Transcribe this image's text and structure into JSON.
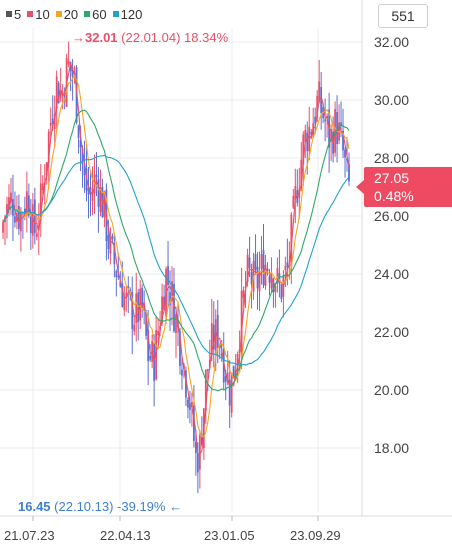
{
  "legend": [
    {
      "label": "5",
      "color": "#555555"
    },
    {
      "label": "10",
      "color": "#e8506a"
    },
    {
      "label": "20",
      "color": "#f5a623"
    },
    {
      "label": "60",
      "color": "#2ea86b"
    },
    {
      "label": "120",
      "color": "#21a3c9"
    }
  ],
  "period_box": "551",
  "max_annotation": {
    "arrow": "→",
    "value": "32.01",
    "detail": "(22.01.04) 18.34%"
  },
  "min_annotation": {
    "value": "16.45",
    "detail": "(22.10.13) -39.19%",
    "arrow": "←"
  },
  "price_tag": {
    "price": "27.05",
    "change": "0.48%"
  },
  "chart_data": {
    "type": "line",
    "y_ticks": [
      "32.00",
      "30.00",
      "28.00",
      "26.00",
      "24.00",
      "22.00",
      "20.00",
      "18.00"
    ],
    "ylim": [
      16.0,
      33.0
    ],
    "x_ticks": [
      "21.07.23",
      "22.04.13",
      "23.01.05",
      "23.09.29"
    ],
    "grid": true,
    "colors": {
      "up": "#e8506a",
      "down": "#5b6fd6",
      "ma5": "#555555",
      "ma10": "#e8506a",
      "ma20": "#f5a623",
      "ma60": "#2ea86b",
      "ma120": "#21a3c9"
    },
    "price_anchors": [
      [
        0,
        25.4
      ],
      [
        6,
        26.2
      ],
      [
        12,
        26.6
      ],
      [
        20,
        26.0
      ],
      [
        28,
        26.8
      ],
      [
        34,
        25.4
      ],
      [
        40,
        26.2
      ],
      [
        48,
        28.6
      ],
      [
        56,
        30.6
      ],
      [
        62,
        30.2
      ],
      [
        68,
        31.2
      ],
      [
        74,
        30.8
      ],
      [
        78,
        29.4
      ],
      [
        84,
        27.2
      ],
      [
        90,
        26.6
      ],
      [
        96,
        27.4
      ],
      [
        104,
        26.2
      ],
      [
        110,
        24.8
      ],
      [
        118,
        24.0
      ],
      [
        126,
        23.0
      ],
      [
        134,
        22.6
      ],
      [
        142,
        22.8
      ],
      [
        148,
        21.2
      ],
      [
        154,
        21.0
      ],
      [
        160,
        22.6
      ],
      [
        166,
        24.0
      ],
      [
        172,
        23.2
      ],
      [
        178,
        22.0
      ],
      [
        184,
        20.8
      ],
      [
        190,
        19.6
      ],
      [
        196,
        17.6
      ],
      [
        200,
        18.0
      ],
      [
        206,
        20.4
      ],
      [
        212,
        21.6
      ],
      [
        218,
        22.0
      ],
      [
        224,
        21.0
      ],
      [
        230,
        20.0
      ],
      [
        236,
        21.2
      ],
      [
        242,
        22.8
      ],
      [
        248,
        24.0
      ],
      [
        256,
        23.6
      ],
      [
        264,
        24.4
      ],
      [
        272,
        24.2
      ],
      [
        280,
        23.4
      ],
      [
        288,
        24.2
      ],
      [
        296,
        26.8
      ],
      [
        304,
        28.6
      ],
      [
        312,
        29.2
      ],
      [
        318,
        30.0
      ],
      [
        324,
        29.4
      ],
      [
        330,
        28.6
      ],
      [
        336,
        29.2
      ],
      [
        342,
        28.4
      ],
      [
        348,
        27.0
      ]
    ]
  }
}
